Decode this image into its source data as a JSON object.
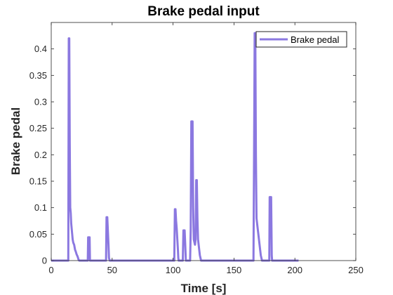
{
  "chart_data": {
    "type": "line",
    "title": "Brake pedal input",
    "xlabel": "Time [s]",
    "ylabel": "Brake pedal",
    "xlim": [
      0,
      250
    ],
    "ylim": [
      0,
      0.45
    ],
    "xticks": [
      0,
      50,
      100,
      150,
      200,
      250
    ],
    "xtick_labels": [
      "0",
      "50",
      "100",
      "150",
      "200",
      "250"
    ],
    "yticks": [
      0,
      0.05,
      0.1,
      0.15,
      0.2,
      0.25,
      0.3,
      0.35,
      0.4
    ],
    "ytick_labels": [
      "0",
      "0.05",
      "0.1",
      "0.15",
      "0.2",
      "0.25",
      "0.3",
      "0.35",
      "0.4"
    ],
    "grid": false,
    "legend_position": "top-right",
    "series": [
      {
        "name": "Brake pedal",
        "color": "#8B78E0",
        "x": [
          0,
          14,
          14.4,
          14.8,
          15.2,
          15.6,
          16,
          16.4,
          16.8,
          17.2,
          17.6,
          18,
          18.4,
          18.8,
          19.2,
          19.6,
          20,
          20.4,
          20.8,
          21.2,
          21.6,
          22,
          22.4,
          23,
          30,
          30.3,
          31.5,
          31.8,
          45,
          45.4,
          46,
          47,
          47.4,
          48,
          101,
          101.5,
          102,
          102.5,
          103,
          103.5,
          104,
          104.3,
          104.6,
          108,
          108.5,
          109.5,
          110,
          110.5,
          114,
          114.5,
          115,
          116,
          116.5,
          117,
          118,
          118.5,
          119,
          119.5,
          120,
          120.5,
          121,
          121.5,
          122,
          122.5,
          123,
          166,
          166.5,
          167,
          167.5,
          168,
          168.5,
          169,
          169.5,
          170,
          170.5,
          171,
          171.5,
          172,
          172.5,
          173,
          179,
          179.3,
          180.5,
          181,
          181.3,
          203
        ],
        "y": [
          0,
          0,
          0.42,
          0.42,
          0.22,
          0.1,
          0.09,
          0.07,
          0.06,
          0.05,
          0.04,
          0.035,
          0.032,
          0.03,
          0.025,
          0.02,
          0.018,
          0.015,
          0.012,
          0.01,
          0.008,
          0.005,
          0.002,
          0,
          0,
          0.044,
          0.044,
          0,
          0,
          0.082,
          0.082,
          0.03,
          0.005,
          0,
          0,
          0.097,
          0.097,
          0.075,
          0.06,
          0.04,
          0.02,
          0.005,
          0,
          0,
          0.057,
          0.057,
          0.03,
          0,
          0,
          0.06,
          0.263,
          0.263,
          0.1,
          0.04,
          0.03,
          0.04,
          0.152,
          0.152,
          0.08,
          0.04,
          0.03,
          0.02,
          0.01,
          0.005,
          0,
          0,
          0.2,
          0.43,
          0.43,
          0.2,
          0.08,
          0.07,
          0.06,
          0.05,
          0.04,
          0.03,
          0.02,
          0.01,
          0.005,
          0,
          0,
          0.12,
          0.12,
          0.01,
          0,
          0
        ]
      }
    ]
  }
}
